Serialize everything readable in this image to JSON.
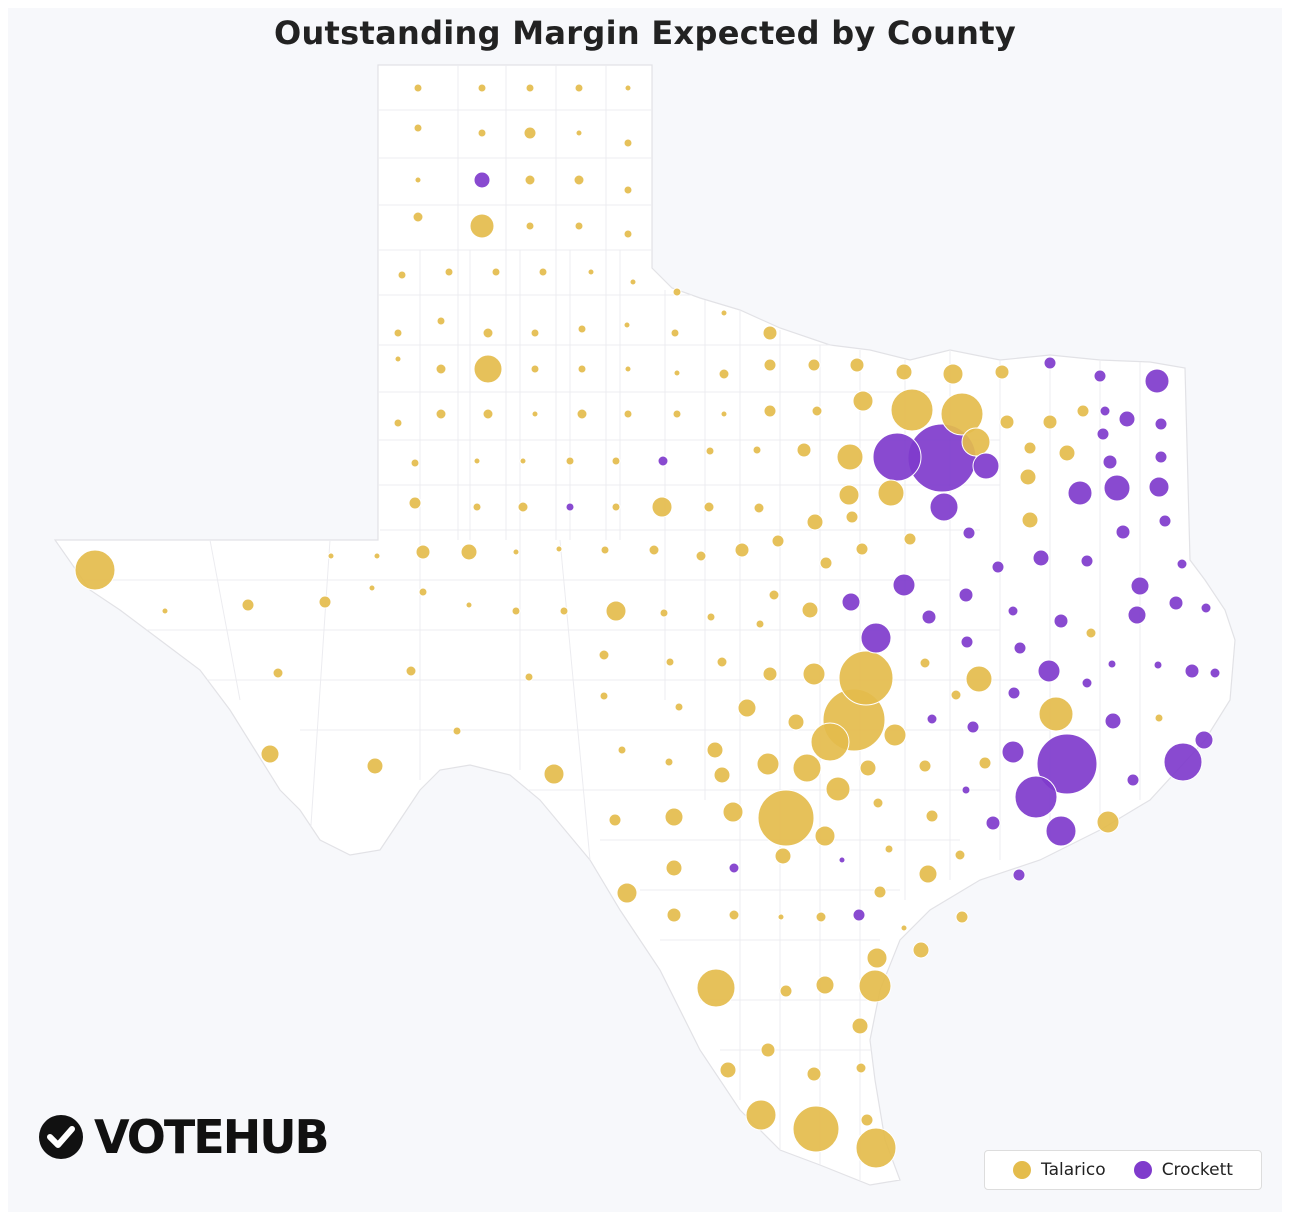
{
  "title": "Outstanding Margin Expected by County",
  "brand": {
    "name": "VOTEHUB",
    "icon": "checkmark-circle-icon"
  },
  "legend": [
    {
      "label": "Talarico",
      "color": "#e4bc4c"
    },
    {
      "label": "Crockett",
      "color": "#7f3bcc"
    }
  ],
  "colors": {
    "map_fill": "#ffffff",
    "county_border": "#e6e6ea",
    "background": "#f7f8fb"
  }
}
